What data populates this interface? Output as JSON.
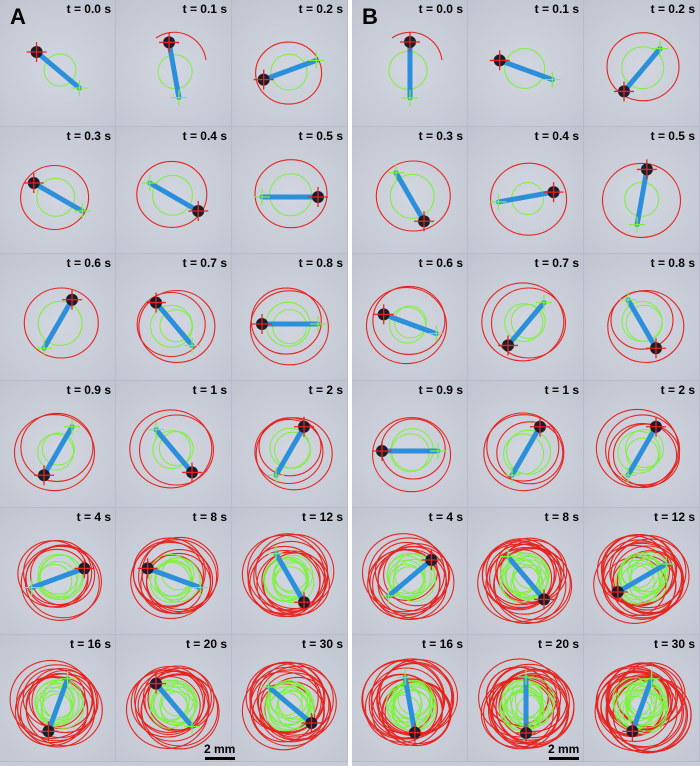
{
  "panels": [
    {
      "letter": "A",
      "scale_bar": "2 mm",
      "frames": [
        {
          "t": "t = 0.0 s",
          "rot": 220,
          "rings": 0
        },
        {
          "t": "t = 0.1 s",
          "rot": 260,
          "rings": 0
        },
        {
          "t": "t = 0.2 s",
          "rot": 160,
          "rings": 1
        },
        {
          "t": "t = 0.3 s",
          "rot": 210,
          "rings": 1
        },
        {
          "t": "t = 0.4 s",
          "rot": 30,
          "rings": 1
        },
        {
          "t": "t = 0.5 s",
          "rot": 0,
          "rings": 1
        },
        {
          "t": "t = 0.6 s",
          "rot": 300,
          "rings": 1
        },
        {
          "t": "t = 0.7 s",
          "rot": 230,
          "rings": 2
        },
        {
          "t": "t = 0.8 s",
          "rot": 180,
          "rings": 2
        },
        {
          "t": "t = 0.9 s",
          "rot": 120,
          "rings": 2
        },
        {
          "t": "t = 1 s",
          "rot": 50,
          "rings": 2
        },
        {
          "t": "t = 2 s",
          "rot": 300,
          "rings": 3
        },
        {
          "t": "t = 4 s",
          "rot": 340,
          "rings": 6
        },
        {
          "t": "t = 8 s",
          "rot": 200,
          "rings": 8
        },
        {
          "t": "t = 12 s",
          "rot": 60,
          "rings": 9
        },
        {
          "t": "t = 16 s",
          "rot": 110,
          "rings": 10
        },
        {
          "t": "t = 20 s",
          "rot": 230,
          "rings": 10
        },
        {
          "t": "t = 30 s",
          "rot": 40,
          "rings": 12
        }
      ]
    },
    {
      "letter": "B",
      "scale_bar": "2 mm",
      "frames": [
        {
          "t": "t = 0.0 s",
          "rot": 270,
          "rings": 0
        },
        {
          "t": "t = 0.1 s",
          "rot": 200,
          "rings": 0
        },
        {
          "t": "t = 0.2 s",
          "rot": 130,
          "rings": 1
        },
        {
          "t": "t = 0.3 s",
          "rot": 60,
          "rings": 1
        },
        {
          "t": "t = 0.4 s",
          "rot": 350,
          "rings": 1
        },
        {
          "t": "t = 0.5 s",
          "rot": 280,
          "rings": 1
        },
        {
          "t": "t = 0.6 s",
          "rot": 200,
          "rings": 2
        },
        {
          "t": "t = 0.7 s",
          "rot": 130,
          "rings": 2
        },
        {
          "t": "t = 0.8 s",
          "rot": 60,
          "rings": 2
        },
        {
          "t": "t = 0.9 s",
          "rot": 180,
          "rings": 2
        },
        {
          "t": "t = 1 s",
          "rot": 300,
          "rings": 3
        },
        {
          "t": "t = 2 s",
          "rot": 300,
          "rings": 4
        },
        {
          "t": "t = 4 s",
          "rot": 320,
          "rings": 9
        },
        {
          "t": "t = 8 s",
          "rot": 50,
          "rings": 12
        },
        {
          "t": "t = 12 s",
          "rot": 150,
          "rings": 14
        },
        {
          "t": "t = 16 s",
          "rot": 80,
          "rings": 14
        },
        {
          "t": "t = 20 s",
          "rot": 90,
          "rings": 15
        },
        {
          "t": "t = 30 s",
          "rot": 110,
          "rings": 18
        }
      ]
    }
  ]
}
